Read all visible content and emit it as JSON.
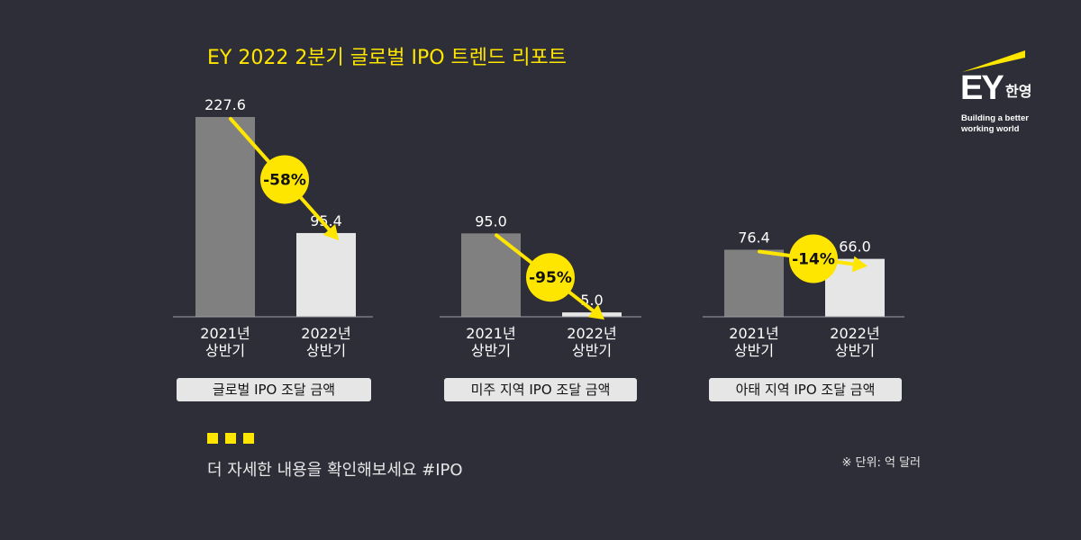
{
  "title": "EY 2022 2분기 글로벌 IPO 트렌드 리포트",
  "chart_data": [
    {
      "type": "bar",
      "categories": [
        "2021년 상반기",
        "2022년 상반기"
      ],
      "values": [
        227.6,
        95.4
      ],
      "value_labels": [
        "227.6",
        "95.4"
      ],
      "category_lines": [
        [
          "2021년",
          "상반기"
        ],
        [
          "2022년",
          "상반기"
        ]
      ],
      "change_label": "-58%",
      "label": "글로벌 IPO 조달 금액"
    },
    {
      "type": "bar",
      "categories": [
        "2021년 상반기",
        "2022년 상반기"
      ],
      "values": [
        95.0,
        5.0
      ],
      "value_labels": [
        "95.0",
        "5.0"
      ],
      "category_lines": [
        [
          "2021년",
          "상반기"
        ],
        [
          "2022년",
          "상반기"
        ]
      ],
      "change_label": "-95%",
      "label": "미주 지역 IPO 조달 금액"
    },
    {
      "type": "bar",
      "categories": [
        "2021년 상반기",
        "2022년 상반기"
      ],
      "values": [
        76.4,
        66.0
      ],
      "value_labels": [
        "76.4",
        "66.0"
      ],
      "category_lines": [
        [
          "2021년",
          "상반기"
        ],
        [
          "2022년",
          "상반기"
        ]
      ],
      "change_label": "-14%",
      "label": "아태 지역 IPO 조달 금액"
    }
  ],
  "colors": {
    "bar_2021": "#808080",
    "bar_2022": "#e6e6e6",
    "accent": "#ffe600",
    "background": "#2e2e38"
  },
  "cta_text": "더 자세한 내용을 확인해보세요 #IPO",
  "unit_note": "※ 단위: 억 달러",
  "logo": {
    "ey": "EY",
    "korean": "한영",
    "tagline_1": "Building a better",
    "tagline_2": "working world"
  }
}
